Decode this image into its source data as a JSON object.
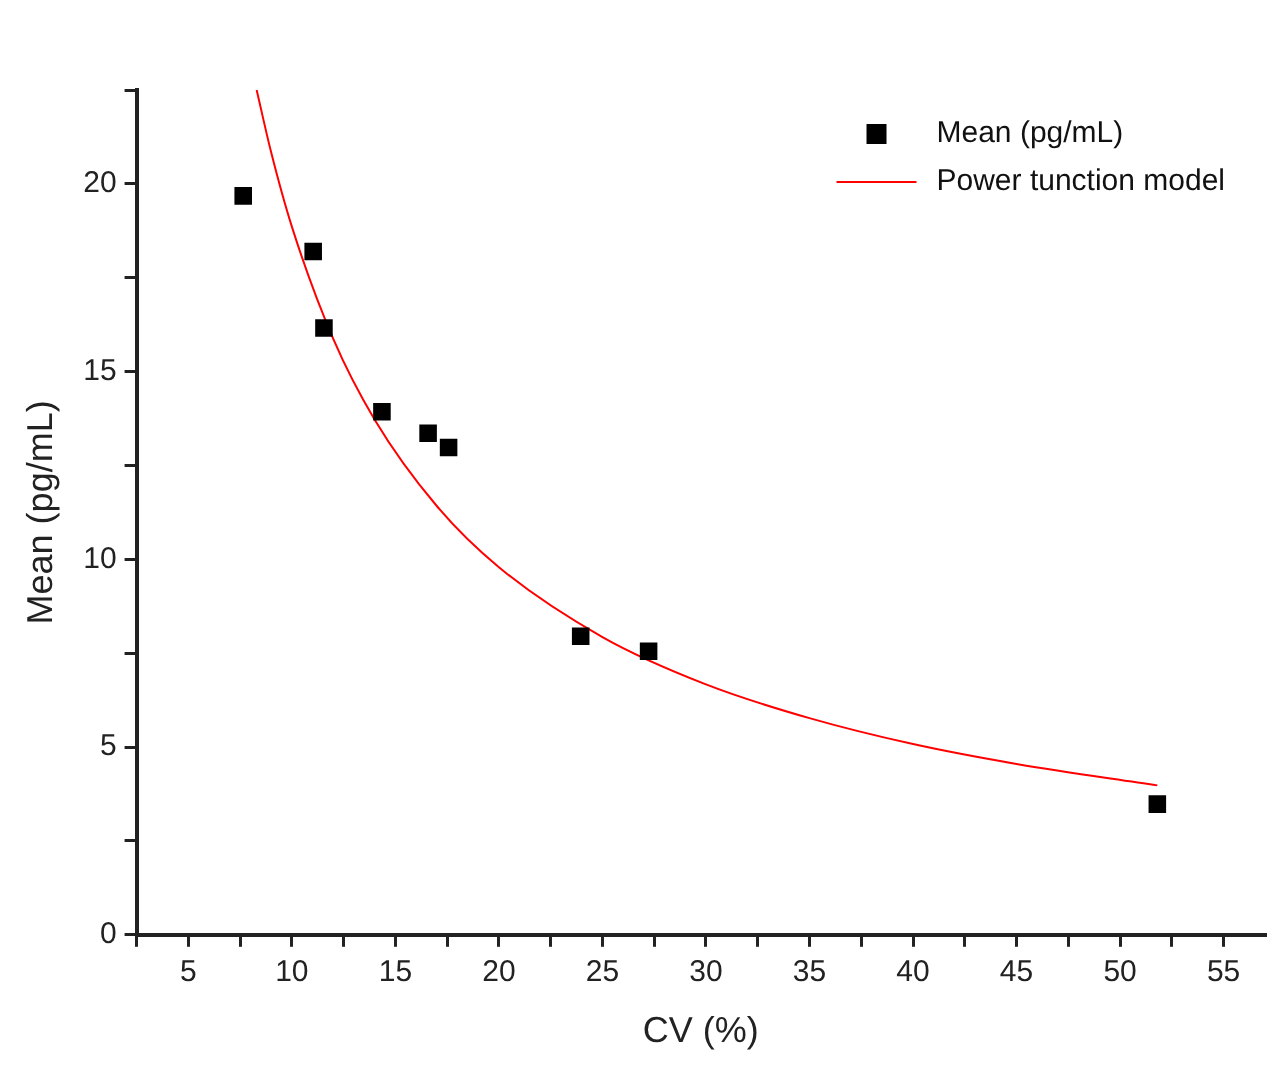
{
  "chart_data": {
    "type": "scatter",
    "xlabel": "CV (%)",
    "ylabel": "Mean (pg/mL)",
    "xlim": [
      2.5,
      57
    ],
    "xticks": [
      {
        "value": 2.5,
        "label": null
      },
      5,
      {
        "value": 7.5,
        "label": null
      },
      10,
      {
        "value": 12.5,
        "label": null
      },
      15,
      {
        "value": 17.5,
        "label": null
      },
      20,
      {
        "value": 22.5,
        "label": null
      },
      25,
      {
        "value": 27.5,
        "label": null
      },
      30,
      {
        "value": 32.5,
        "label": null
      },
      35,
      {
        "value": 37.5,
        "label": null
      },
      40,
      {
        "value": 42.5,
        "label": null
      },
      45,
      {
        "value": 47.5,
        "label": null
      },
      50,
      {
        "value": 52.5,
        "label": null
      },
      55
    ],
    "ylim": [
      0,
      22.5
    ],
    "yticks": [
      0,
      {
        "value": 2.5,
        "label": null
      },
      5,
      {
        "value": 7.5,
        "label": null
      },
      10,
      {
        "value": 12.5,
        "label": null
      },
      15,
      {
        "value": 17.5,
        "label": null
      },
      20,
      {
        "value": 22.5,
        "label": null
      }
    ],
    "grid": false,
    "legend": "top right",
    "marker": "square",
    "series": [
      {
        "name": "Mean (pg/mL)",
        "color": "#000000",
        "x": [
          7.65,
          11.03,
          11.55,
          14.35,
          16.58,
          17.57,
          23.95,
          27.23,
          51.8
        ],
        "values": [
          19.68,
          18.2,
          16.16,
          13.93,
          13.36,
          12.98,
          7.95,
          7.55,
          3.48
        ]
      },
      {
        "name": "Power tunction model",
        "type": "line",
        "color": "#ff0000",
        "marker": "none",
        "line_style": "solid",
        "x": [
          8.3,
          9,
          10,
          12,
          14,
          17,
          20,
          25,
          30,
          35,
          40,
          45,
          51.8
        ],
        "values": [
          22.5,
          20.84,
          18.86,
          15.87,
          13.72,
          11.42,
          9.79,
          7.93,
          6.67,
          5.77,
          5.08,
          4.55,
          3.98
        ]
      }
    ]
  }
}
